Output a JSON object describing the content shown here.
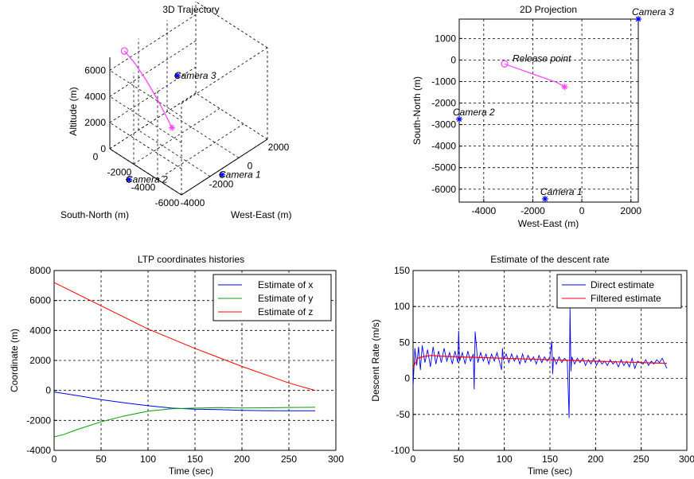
{
  "chart_data": [
    {
      "id": "traj3d",
      "type": "line",
      "projection": "3d",
      "title": "3D Trajectory",
      "xlabel": "West-East (m)",
      "ylabel": "South-North (m)",
      "zlabel": "Altitude (m)",
      "x_ticks": [
        "-4000",
        "-2000",
        "0",
        "2000"
      ],
      "y_ticks": [
        "-6000",
        "-4000",
        "-2000",
        "0"
      ],
      "z_ticks": [
        "0",
        "2000",
        "4000",
        "6000"
      ],
      "xlim": [
        -4000,
        2000
      ],
      "ylim": [
        -6000,
        0
      ],
      "zlim": [
        0,
        7000
      ],
      "grid": true,
      "series": [
        {
          "color": "#ff44ff",
          "points": [
            {
              "x": -3150,
              "y": -200,
              "z": 7000
            },
            {
              "x": -2600,
              "y": -400,
              "z": 5800
            },
            {
              "x": -2000,
              "y": -650,
              "z": 4200
            },
            {
              "x": -1400,
              "y": -900,
              "z": 2400
            },
            {
              "x": -900,
              "y": -1150,
              "z": 700
            },
            {
              "x": -700,
              "y": -1250,
              "z": 0
            }
          ],
          "start_marker": "circle",
          "end_marker": "star"
        }
      ],
      "annotations": [
        {
          "text": "Camera 3",
          "x": 2300,
          "y": 1900,
          "z": 0
        },
        {
          "text": "Camera 2",
          "x": -5000,
          "y": -2800,
          "z": 0
        },
        {
          "text": "Camera 1",
          "x": -1500,
          "y": -6400,
          "z": 0
        }
      ]
    },
    {
      "id": "proj2d",
      "type": "scatter",
      "title": "2D Projection",
      "xlabel": "West-East (m)",
      "ylabel": "South-North (m)",
      "xlim": [
        -5000,
        2300
      ],
      "ylim": [
        -6600,
        1900
      ],
      "x_ticks": [
        -4000,
        -2000,
        0,
        2000
      ],
      "y_ticks": [
        1000,
        0,
        -1000,
        -2000,
        -3000,
        -4000,
        -5000,
        -6000
      ],
      "grid": true,
      "series": [
        {
          "color": "#ff44ff",
          "points": [
            {
              "x": -3150,
              "y": -180
            },
            {
              "x": -2000,
              "y": -650
            },
            {
              "x": -1000,
              "y": -1050
            },
            {
              "x": -700,
              "y": -1250
            }
          ],
          "start_marker": "circle",
          "end_marker": "star"
        }
      ],
      "cameras": [
        {
          "label": "Camera 3",
          "x": 2300,
          "y": 1900
        },
        {
          "label": "Camera 2",
          "x": -5000,
          "y": -2750
        },
        {
          "label": "Camera 1",
          "x": -1500,
          "y": -6450
        }
      ],
      "annotations": [
        {
          "text": "Release point",
          "x": -3150,
          "y": -180
        }
      ]
    },
    {
      "id": "ltp",
      "type": "line",
      "title": "LTP coordinates histories",
      "xlabel": "Time (sec)",
      "ylabel": "Coordinate (m)",
      "xlim": [
        0,
        300
      ],
      "ylim": [
        -4000,
        8000
      ],
      "x_ticks": [
        0,
        50,
        100,
        150,
        200,
        250,
        300
      ],
      "y_ticks": [
        8000,
        6000,
        4000,
        2000,
        0,
        -2000,
        -4000
      ],
      "grid": true,
      "legend_position": "top-right",
      "series": [
        {
          "name": "Estimate of x",
          "color": "#0000ff",
          "x": [
            0,
            25,
            50,
            75,
            100,
            125,
            150,
            175,
            200,
            225,
            250,
            278
          ],
          "values": [
            -100,
            -350,
            -620,
            -830,
            -1020,
            -1180,
            -1250,
            -1280,
            -1330,
            -1350,
            -1360,
            -1360
          ]
        },
        {
          "name": "Estimate of y",
          "color": "#00a000",
          "x": [
            0,
            10,
            25,
            50,
            75,
            100,
            125,
            150,
            175,
            200,
            225,
            250,
            278
          ],
          "values": [
            -3100,
            -2950,
            -2600,
            -2100,
            -1700,
            -1380,
            -1230,
            -1180,
            -1150,
            -1170,
            -1160,
            -1140,
            -1130
          ]
        },
        {
          "name": "Estimate of z",
          "color": "#ff0000",
          "x": [
            0,
            50,
            100,
            150,
            200,
            250,
            278
          ],
          "values": [
            7200,
            5650,
            4100,
            2800,
            1600,
            500,
            0
          ]
        }
      ]
    },
    {
      "id": "descent",
      "type": "line",
      "title": "Estimate of the descent rate",
      "xlabel": "Time (sec)",
      "ylabel": "Descent Rate (m/s)",
      "xlim": [
        0,
        300
      ],
      "ylim": [
        -100,
        150
      ],
      "x_ticks": [
        0,
        50,
        100,
        150,
        200,
        250,
        300
      ],
      "y_ticks": [
        150,
        100,
        50,
        0,
        -50,
        -100
      ],
      "grid": true,
      "legend_position": "top-right",
      "series": [
        {
          "name": "Direct estimate",
          "color": "#0000ff",
          "x": [
            0,
            2,
            4,
            6,
            8,
            10,
            13,
            16,
            19,
            22,
            25,
            28,
            31,
            34,
            37,
            40,
            43,
            46,
            49,
            50,
            51,
            54,
            57,
            60,
            63,
            66,
            67,
            68,
            71,
            74,
            77,
            80,
            83,
            86,
            89,
            92,
            95,
            97,
            98,
            99,
            102,
            105,
            108,
            111,
            114,
            117,
            120,
            123,
            126,
            129,
            132,
            135,
            138,
            141,
            144,
            147,
            150,
            152,
            153,
            154,
            157,
            160,
            163,
            166,
            169,
            171,
            172,
            173,
            174,
            177,
            180,
            183,
            186,
            189,
            192,
            195,
            198,
            201,
            204,
            207,
            210,
            213,
            216,
            219,
            222,
            225,
            228,
            231,
            234,
            237,
            240,
            243,
            246,
            249,
            252,
            255,
            258,
            261,
            264,
            267,
            270,
            273,
            276,
            278
          ],
          "values": [
            -12,
            42,
            18,
            44,
            12,
            46,
            22,
            40,
            16,
            44,
            20,
            38,
            22,
            42,
            24,
            36,
            20,
            38,
            22,
            66,
            24,
            36,
            20,
            38,
            24,
            34,
            -15,
            65,
            22,
            36,
            24,
            34,
            20,
            34,
            24,
            36,
            22,
            12,
            42,
            26,
            34,
            22,
            34,
            24,
            32,
            20,
            34,
            22,
            32,
            24,
            30,
            20,
            32,
            22,
            30,
            24,
            30,
            52,
            6,
            30,
            20,
            30,
            22,
            28,
            24,
            -55,
            98,
            10,
            30,
            20,
            28,
            22,
            28,
            18,
            26,
            20,
            28,
            18,
            26,
            20,
            24,
            18,
            26,
            20,
            24,
            16,
            26,
            18,
            24,
            16,
            28,
            14,
            24,
            22,
            20,
            26,
            18,
            24,
            20,
            26,
            22,
            28,
            20,
            14
          ]
        },
        {
          "name": "Filtered estimate",
          "color": "#ff0000",
          "x": [
            0,
            5,
            10,
            20,
            30,
            50,
            75,
            100,
            125,
            150,
            175,
            200,
            225,
            250,
            278
          ],
          "values": [
            15,
            28,
            30,
            32,
            31,
            30,
            29,
            28,
            27,
            26,
            25,
            24,
            23,
            22,
            21
          ]
        }
      ]
    }
  ]
}
